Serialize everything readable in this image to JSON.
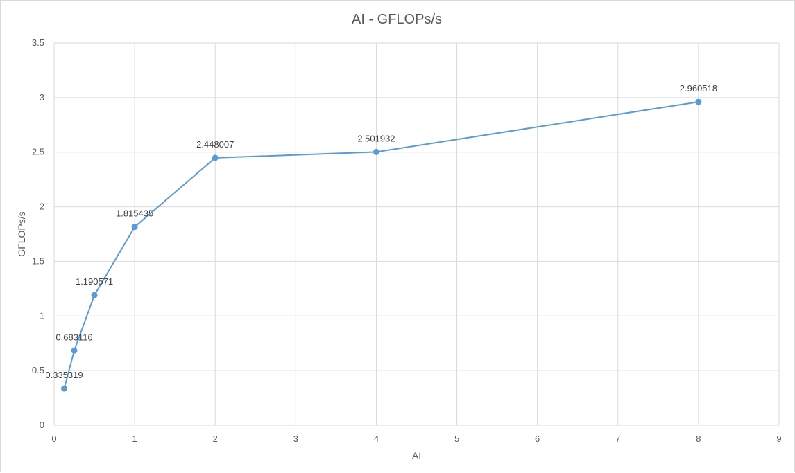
{
  "chart_data": {
    "type": "scatter",
    "title": "AI - GFLOPs/s",
    "xlabel": "AI",
    "ylabel": "GFLOPs/s",
    "xlim": [
      0,
      9
    ],
    "ylim": [
      0,
      3.5
    ],
    "x_ticks": [
      "0",
      "1",
      "2",
      "3",
      "4",
      "5",
      "6",
      "7",
      "8",
      "9"
    ],
    "y_ticks": [
      "0",
      "0.5",
      "1",
      "1.5",
      "2",
      "2.5",
      "3",
      "3.5"
    ],
    "grid": true,
    "legend": "none",
    "series": [
      {
        "color": "#5b9bd5",
        "x": [
          0.125,
          0.25,
          0.5,
          1,
          2,
          4,
          8
        ],
        "y": [
          0.335319,
          0.683116,
          1.190571,
          1.815435,
          2.448007,
          2.501932,
          2.960518
        ],
        "labels": [
          "0.335319",
          "0.683116",
          "1.190571",
          "1.815435",
          "2.448007",
          "2.501932",
          "2.960518"
        ]
      }
    ]
  }
}
